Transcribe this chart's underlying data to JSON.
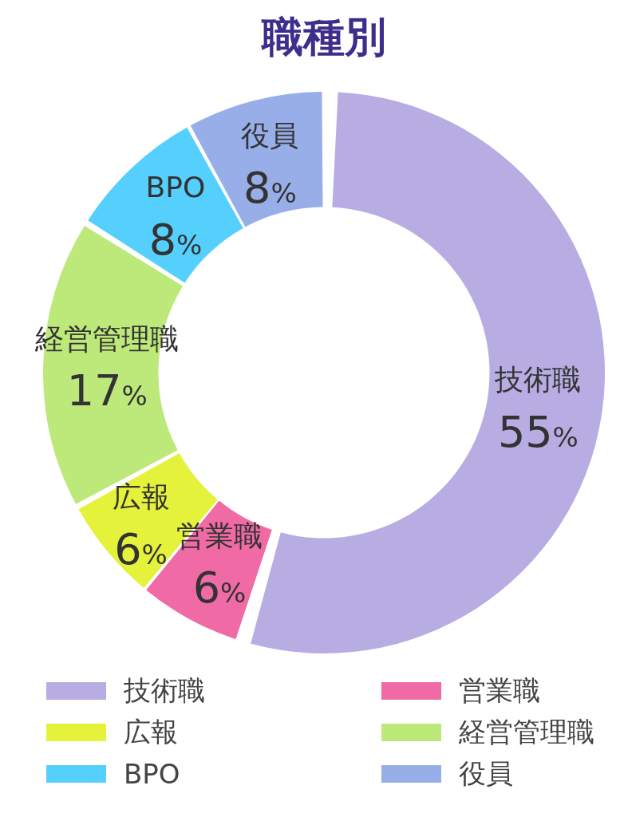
{
  "chart_data": {
    "type": "donut",
    "title": "職種別",
    "categories": [
      "技術職",
      "営業職",
      "広報",
      "経営管理職",
      "BPO",
      "役員"
    ],
    "values": [
      55,
      6,
      6,
      17,
      8,
      8
    ],
    "colors": [
      "#b8ade3",
      "#f06ba6",
      "#e5f23c",
      "#bde87a",
      "#55d0fd",
      "#98aee8"
    ],
    "value_labels": [
      "55%",
      "6%",
      "6%",
      "17%",
      "8%",
      "8%"
    ],
    "legend": "bottom"
  }
}
